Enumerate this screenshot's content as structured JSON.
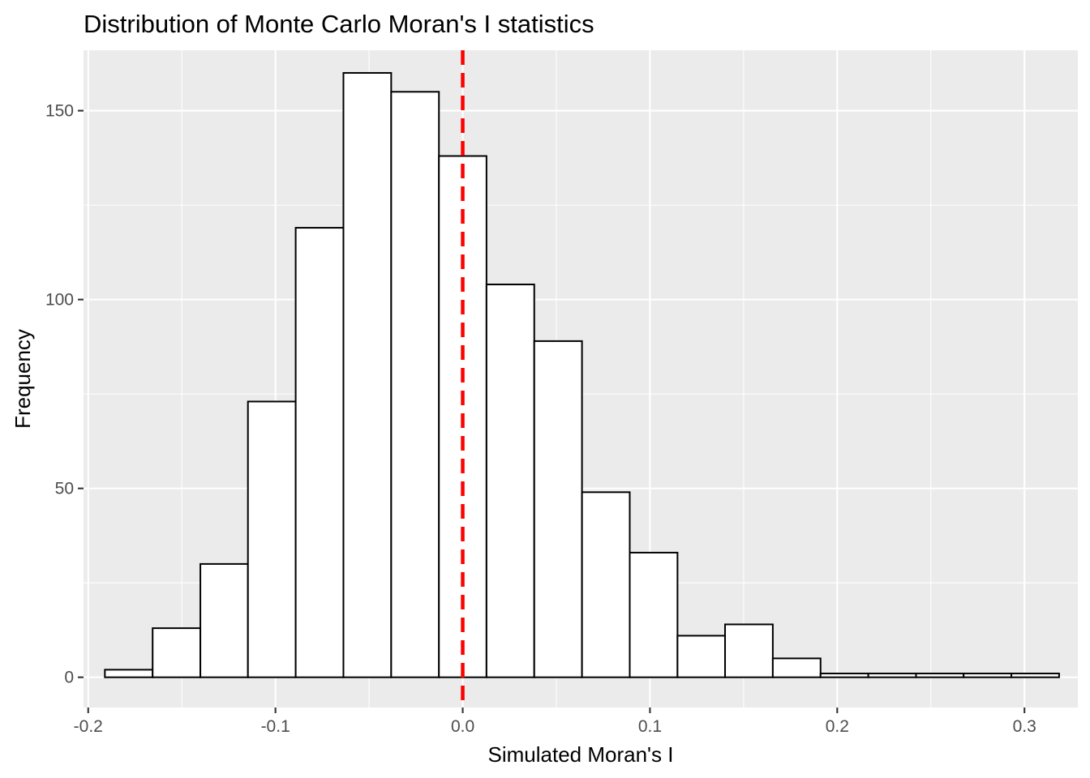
{
  "chart_data": {
    "type": "bar",
    "title": "Distribution of Monte Carlo Moran's I statistics",
    "xlabel": "Simulated Moran's I",
    "ylabel": "Frequency",
    "xlim": [
      -0.2025,
      0.3285
    ],
    "ylim": [
      -8,
      166
    ],
    "x_ticks": [
      -0.2,
      -0.1,
      0.0,
      0.1,
      0.2,
      0.3
    ],
    "x_tick_labels": [
      "-0.2",
      "-0.1",
      "0.0",
      "0.1",
      "0.2",
      "0.3"
    ],
    "y_ticks": [
      0,
      50,
      100,
      150
    ],
    "y_tick_labels": [
      "0",
      "50",
      "100",
      "150"
    ],
    "bins": [
      {
        "x0": -0.1911,
        "x1": -0.1656,
        "count": 2
      },
      {
        "x0": -0.1656,
        "x1": -0.1401,
        "count": 13
      },
      {
        "x0": -0.1401,
        "x1": -0.1147,
        "count": 30
      },
      {
        "x0": -0.1147,
        "x1": -0.0892,
        "count": 73
      },
      {
        "x0": -0.0892,
        "x1": -0.0637,
        "count": 119
      },
      {
        "x0": -0.0637,
        "x1": -0.0382,
        "count": 160
      },
      {
        "x0": -0.0382,
        "x1": -0.0127,
        "count": 155
      },
      {
        "x0": -0.0127,
        "x1": 0.0127,
        "count": 138
      },
      {
        "x0": 0.0127,
        "x1": 0.0382,
        "count": 104
      },
      {
        "x0": 0.0382,
        "x1": 0.0637,
        "count": 89
      },
      {
        "x0": 0.0637,
        "x1": 0.0892,
        "count": 49
      },
      {
        "x0": 0.0892,
        "x1": 0.1147,
        "count": 33
      },
      {
        "x0": 0.1147,
        "x1": 0.1401,
        "count": 11
      },
      {
        "x0": 0.1401,
        "x1": 0.1656,
        "count": 14
      },
      {
        "x0": 0.1656,
        "x1": 0.1911,
        "count": 5
      },
      {
        "x0": 0.1911,
        "x1": 0.2166,
        "count": 1
      },
      {
        "x0": 0.2166,
        "x1": 0.2421,
        "count": 1
      },
      {
        "x0": 0.2421,
        "x1": 0.2675,
        "count": 1
      },
      {
        "x0": 0.2675,
        "x1": 0.293,
        "count": 1
      },
      {
        "x0": 0.293,
        "x1": 0.3185,
        "count": 1
      }
    ],
    "reference_line": {
      "x": 0.0,
      "color": "#ff0000",
      "style": "dashed"
    },
    "bar_fill": "#ffffff",
    "bar_outline": "#000000",
    "panel_background": "#ebebeb",
    "grid": true,
    "legend": "none"
  }
}
